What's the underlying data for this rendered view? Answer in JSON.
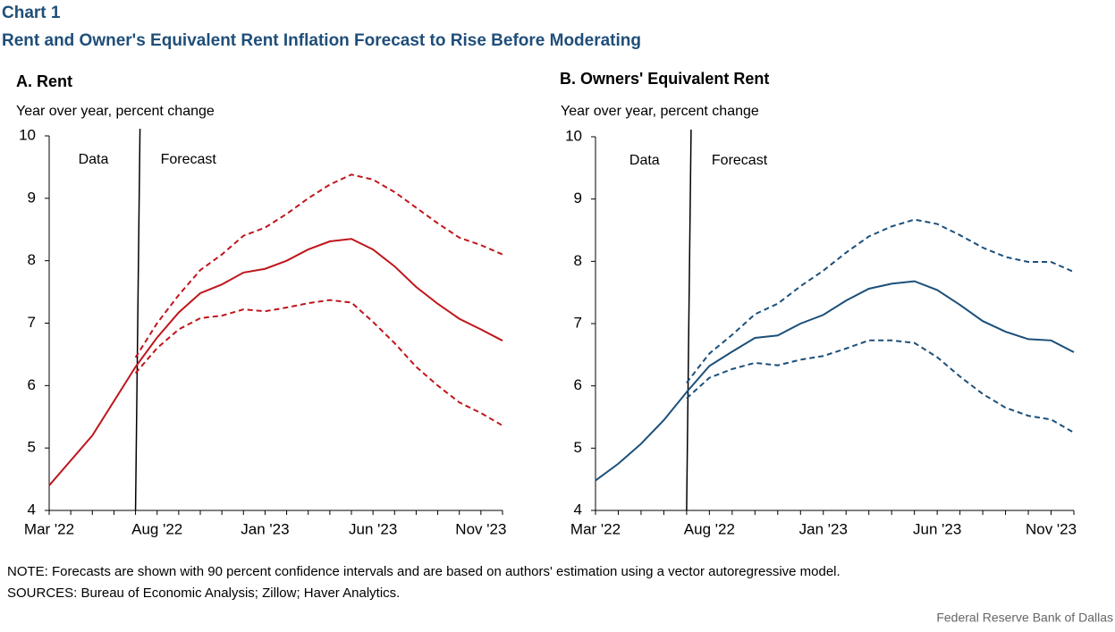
{
  "header": {
    "label": "Chart 1",
    "title": "Rent and Owner's Equivalent Rent Inflation Forecast to Rise Before Moderating"
  },
  "chart_data": [
    {
      "type": "line",
      "title": "A. Rent",
      "y_label": "Year over year, percent change",
      "annotations": [
        "Data",
        "Forecast"
      ],
      "categories": [
        "Mar '22",
        null,
        null,
        null,
        null,
        "Aug '22",
        null,
        null,
        null,
        null,
        "Jan '23",
        null,
        null,
        null,
        null,
        "Jun '23",
        null,
        null,
        null,
        null,
        "Nov '23",
        null
      ],
      "ylim": [
        4,
        10
      ],
      "yticks": [
        4,
        5,
        6,
        7,
        8,
        9,
        10
      ],
      "series": [
        {
          "color": "#c0151b",
          "style": "solid",
          "values": [
            4.4,
            4.8,
            5.2,
            5.75,
            6.3,
            6.77,
            7.17,
            7.48,
            7.62,
            7.81,
            7.87,
            8.0,
            8.18,
            8.31,
            8.35,
            8.18,
            7.91,
            7.58,
            7.31,
            7.07,
            6.9,
            6.72
          ]
        },
        {
          "color": "#c0151b",
          "style": "dashed",
          "values": [
            null,
            null,
            null,
            null,
            6.45,
            7.0,
            7.45,
            7.85,
            8.1,
            8.4,
            8.53,
            8.75,
            9.0,
            9.22,
            9.38,
            9.3,
            9.1,
            8.85,
            8.6,
            8.37,
            8.25,
            8.1
          ]
        },
        {
          "color": "#c0151b",
          "style": "dashed",
          "values": [
            null,
            null,
            null,
            null,
            6.2,
            6.6,
            6.9,
            7.08,
            7.12,
            7.22,
            7.19,
            7.25,
            7.32,
            7.37,
            7.33,
            7.02,
            6.68,
            6.3,
            6.0,
            5.73,
            5.56,
            5.36
          ]
        }
      ]
    },
    {
      "type": "line",
      "title": "B. Owners' Equivalent Rent",
      "y_label": "Year over year, percent change",
      "annotations": [
        "Data",
        "Forecast"
      ],
      "categories": [
        "Mar '22",
        null,
        null,
        null,
        null,
        "Aug '22",
        null,
        null,
        null,
        null,
        "Jan '23",
        null,
        null,
        null,
        null,
        "Jun '23",
        null,
        null,
        null,
        null,
        "Nov '23",
        null
      ],
      "ylim": [
        4,
        10
      ],
      "yticks": [
        4,
        5,
        6,
        7,
        8,
        9,
        10
      ],
      "series": [
        {
          "color": "#1b4f7a",
          "style": "solid",
          "values": [
            4.48,
            4.75,
            5.07,
            5.45,
            5.9,
            6.32,
            6.55,
            6.77,
            6.81,
            7.0,
            7.14,
            7.37,
            7.56,
            7.64,
            7.68,
            7.54,
            7.3,
            7.04,
            6.87,
            6.75,
            6.73,
            6.54
          ]
        },
        {
          "color": "#1b4f7a",
          "style": "dashed",
          "values": [
            null,
            null,
            null,
            null,
            6.05,
            6.52,
            6.82,
            7.15,
            7.32,
            7.6,
            7.85,
            8.14,
            8.4,
            8.56,
            8.67,
            8.6,
            8.42,
            8.22,
            8.07,
            7.99,
            7.99,
            7.83
          ]
        },
        {
          "color": "#1b4f7a",
          "style": "dashed",
          "values": [
            null,
            null,
            null,
            null,
            5.8,
            6.13,
            6.27,
            6.37,
            6.33,
            6.42,
            6.48,
            6.6,
            6.73,
            6.73,
            6.69,
            6.46,
            6.15,
            5.87,
            5.65,
            5.52,
            5.46,
            5.25
          ]
        }
      ]
    }
  ],
  "footer": {
    "note": "NOTE: Forecasts are shown with 90 percent confidence intervals and are based on authors' estimation using a vector autoregressive model.",
    "sources": "SOURCES: Bureau of Economic Analysis; Zillow; Haver Analytics.",
    "credit": "Federal Reserve  Bank of Dallas"
  }
}
